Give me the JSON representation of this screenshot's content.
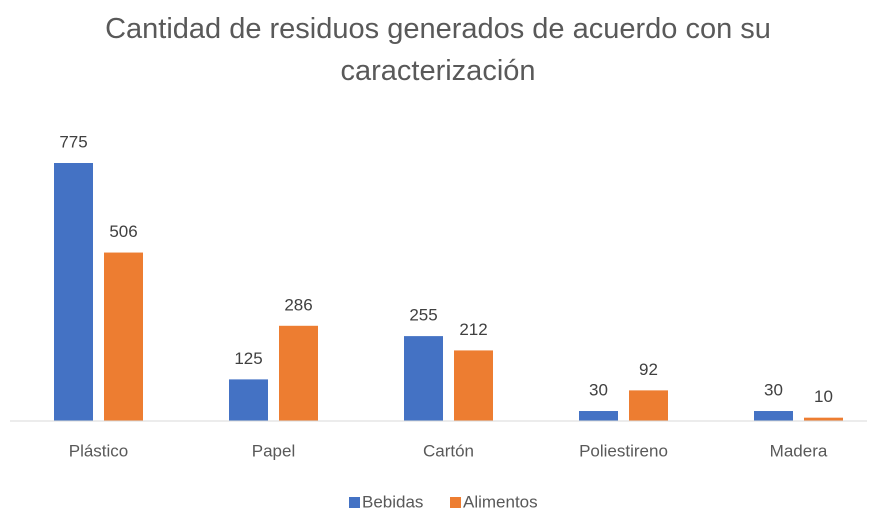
{
  "chart_data": {
    "type": "bar",
    "title": "Cantidad de residuos generados de acuerdo con su caracterización",
    "categories": [
      "Plástico",
      "Papel",
      "Cartón",
      "Poliestireno",
      "Madera"
    ],
    "series": [
      {
        "name": "Bebidas",
        "color": "#4472c4",
        "values": [
          775,
          125,
          255,
          30,
          30
        ]
      },
      {
        "name": "Alimentos",
        "color": "#ed7d31",
        "values": [
          506,
          286,
          212,
          92,
          10
        ]
      }
    ],
    "legend": "bottom"
  }
}
